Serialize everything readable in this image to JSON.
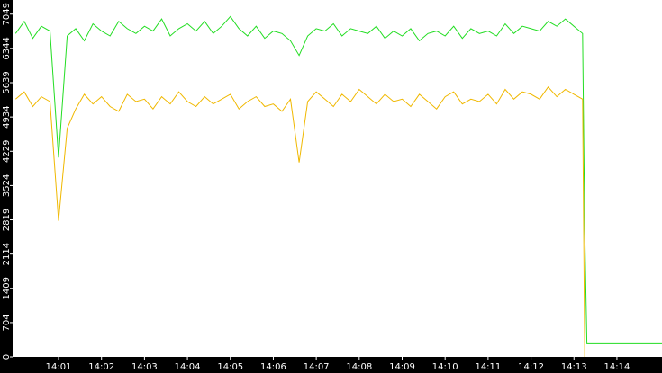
{
  "chart_data": {
    "type": "line",
    "x": [
      840.0,
      840.2,
      840.4,
      840.6,
      840.8,
      841.0,
      841.2,
      841.4,
      841.6,
      841.8,
      842.0,
      842.2,
      842.4,
      842.6,
      842.8,
      843.0,
      843.2,
      843.4,
      843.6,
      843.8,
      844.0,
      844.2,
      844.4,
      844.6,
      844.8,
      845.0,
      845.2,
      845.4,
      845.6,
      845.8,
      846.0,
      846.2,
      846.4,
      846.6,
      846.8,
      847.0,
      847.2,
      847.4,
      847.6,
      847.8,
      848.0,
      848.2,
      848.4,
      848.6,
      848.8,
      849.0,
      849.2,
      849.4,
      849.6,
      849.8,
      850.0,
      850.2,
      850.4,
      850.6,
      850.8,
      851.0,
      851.2,
      851.4,
      851.6,
      851.8,
      852.0,
      852.2,
      852.4,
      852.6,
      852.8,
      853.0,
      853.2,
      853.25,
      853.3,
      855.05
    ],
    "series": [
      {
        "name": "green",
        "color": "#22dd22",
        "values": [
          6650,
          6900,
          6550,
          6800,
          6700,
          4100,
          6600,
          6750,
          6500,
          6850,
          6700,
          6600,
          6900,
          6750,
          6650,
          6800,
          6700,
          6950,
          6600,
          6750,
          6850,
          6700,
          6900,
          6650,
          6800,
          7000,
          6750,
          6600,
          6800,
          6550,
          6700,
          6650,
          6500,
          6200,
          6600,
          6750,
          6700,
          6850,
          6600,
          6750,
          6700,
          6650,
          6800,
          6550,
          6700,
          6600,
          6750,
          6500,
          6650,
          6700,
          6600,
          6800,
          6550,
          6750,
          6650,
          6700,
          6600,
          6850,
          6650,
          6800,
          6750,
          6700,
          6900,
          6800,
          6950,
          6800,
          6650,
          2600,
          270,
          270
        ]
      },
      {
        "name": "yellow",
        "color": "#f0b800",
        "values": [
          5300,
          5450,
          5150,
          5350,
          5250,
          2800,
          4700,
          5100,
          5400,
          5200,
          5350,
          5150,
          5050,
          5400,
          5250,
          5300,
          5100,
          5350,
          5200,
          5450,
          5250,
          5150,
          5350,
          5200,
          5300,
          5400,
          5100,
          5250,
          5350,
          5150,
          5200,
          5050,
          5300,
          4000,
          5250,
          5450,
          5300,
          5150,
          5400,
          5250,
          5500,
          5350,
          5200,
          5400,
          5250,
          5300,
          5150,
          5400,
          5250,
          5100,
          5350,
          5450,
          5200,
          5300,
          5250,
          5400,
          5200,
          5500,
          5300,
          5450,
          5400,
          5300,
          5550,
          5350,
          5500,
          5400,
          5300,
          0,
          null,
          null
        ]
      }
    ],
    "xlim": [
      839.93,
      855.05
    ],
    "xticks": [
      {
        "value": 841,
        "label": "14:01"
      },
      {
        "value": 842,
        "label": "14:02"
      },
      {
        "value": 843,
        "label": "14:03"
      },
      {
        "value": 844,
        "label": "14:04"
      },
      {
        "value": 845,
        "label": "14:05"
      },
      {
        "value": 846,
        "label": "14:06"
      },
      {
        "value": 847,
        "label": "14:07"
      },
      {
        "value": 848,
        "label": "14:08"
      },
      {
        "value": 849,
        "label": "14:09"
      },
      {
        "value": 850,
        "label": "14:10"
      },
      {
        "value": 851,
        "label": "14:11"
      },
      {
        "value": 852,
        "label": "14:12"
      },
      {
        "value": 853,
        "label": "14:13"
      },
      {
        "value": 854,
        "label": "14:14"
      }
    ],
    "ylim": [
      0,
      7340
    ],
    "yticks": [
      0,
      704,
      1409,
      2114,
      2819,
      3524,
      4229,
      4934,
      5639,
      6344,
      7049
    ]
  }
}
